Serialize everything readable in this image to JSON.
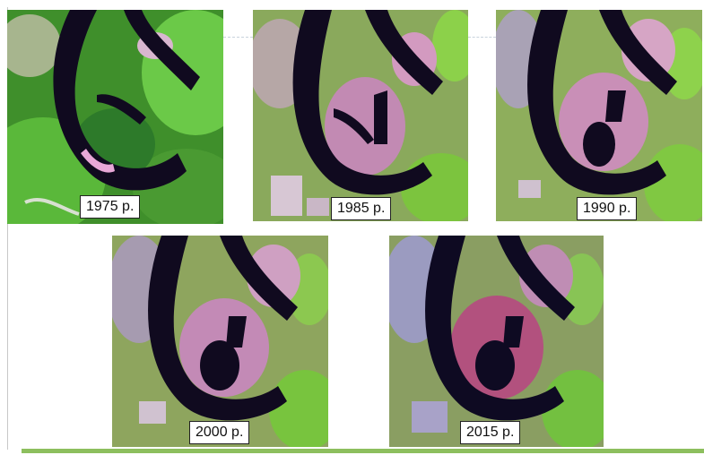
{
  "years": [
    {
      "label": "1975 р."
    },
    {
      "label": "1985 р."
    },
    {
      "label": "1990 р."
    },
    {
      "label": "2000 р."
    },
    {
      "label": "2015 р."
    }
  ],
  "colors": {
    "water": "#0f0a1e",
    "vegetation": "#66b83c",
    "bare_land": "#c98db1",
    "accent_rule": "#8dbf5e"
  }
}
